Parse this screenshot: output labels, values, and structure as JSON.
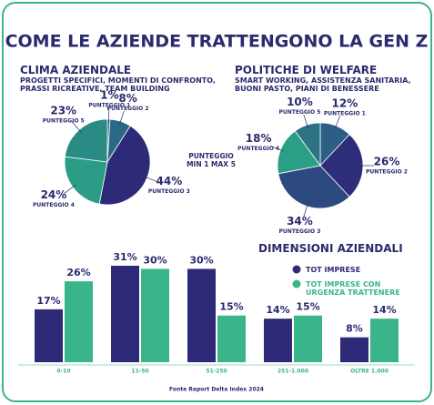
{
  "title": "COME LE AZIENDE TRATTENGONO LA GEN Z",
  "note": [
    "PUNTEGGIO",
    "MIN 1 MAX 5"
  ],
  "source": "Fonte Report Delta Index 2024",
  "chart_data": [
    {
      "type": "pie",
      "title": "CLIMA AZIENDALE",
      "subtitle": "PROGETTI SPECIFICI, MOMENTI DI CONFRONTO, PRASSI RICREATIVE, TEAM BUILDING",
      "categories": [
        "PUNTEGGIO 1",
        "PUNTEGGIO 2",
        "PUNTEGGIO 3",
        "PUNTEGGIO 4",
        "PUNTEGGIO 5"
      ],
      "values": [
        1,
        8,
        44,
        24,
        23
      ],
      "value_labels": [
        "1%",
        "8%",
        "44%",
        "24%",
        "23%"
      ],
      "colors": [
        "#2e6f8a",
        "#2b6a85",
        "#2d2a78",
        "#2b9c86",
        "#2a8a84"
      ]
    },
    {
      "type": "pie",
      "title": "POLITICHE DI WELFARE",
      "subtitle": "SMART WORKING, ASSISTENZA SANITARIA, BUONI PASTO, PIANI DI BENESSERE",
      "categories": [
        "PUNTEGGIO 1",
        "PUNTEGGIO 2",
        "PUNTEGGIO 3",
        "PUNTEGGIO 4",
        "PUNTEGGIO 5"
      ],
      "values": [
        12,
        26,
        34,
        18,
        10
      ],
      "value_labels": [
        "12%",
        "26%",
        "34%",
        "18%",
        "10%"
      ],
      "colors": [
        "#2b5f86",
        "#2d2d7a",
        "#2c4a80",
        "#2b9e86",
        "#2b7385"
      ]
    },
    {
      "type": "bar",
      "title": "DIMENSIONI AZIENDALI",
      "legend": "top-right",
      "categories": [
        "0-10",
        "11-50",
        "51-250",
        "251-1.000",
        "OLTRE 1.000"
      ],
      "series": [
        {
          "name": "TOT IMPRESE",
          "color": "#2e2a78",
          "values": [
            17,
            31,
            30,
            14,
            8
          ],
          "value_labels": [
            "17%",
            "31%",
            "30%",
            "14%",
            "8%"
          ]
        },
        {
          "name": "TOT IMPRESE CON URGENZA TRATTENERE",
          "color": "#3ab58a",
          "values": [
            26,
            30,
            15,
            15,
            14
          ],
          "value_labels": [
            "26%",
            "30%",
            "15%",
            "15%",
            "14%"
          ]
        }
      ]
    }
  ]
}
